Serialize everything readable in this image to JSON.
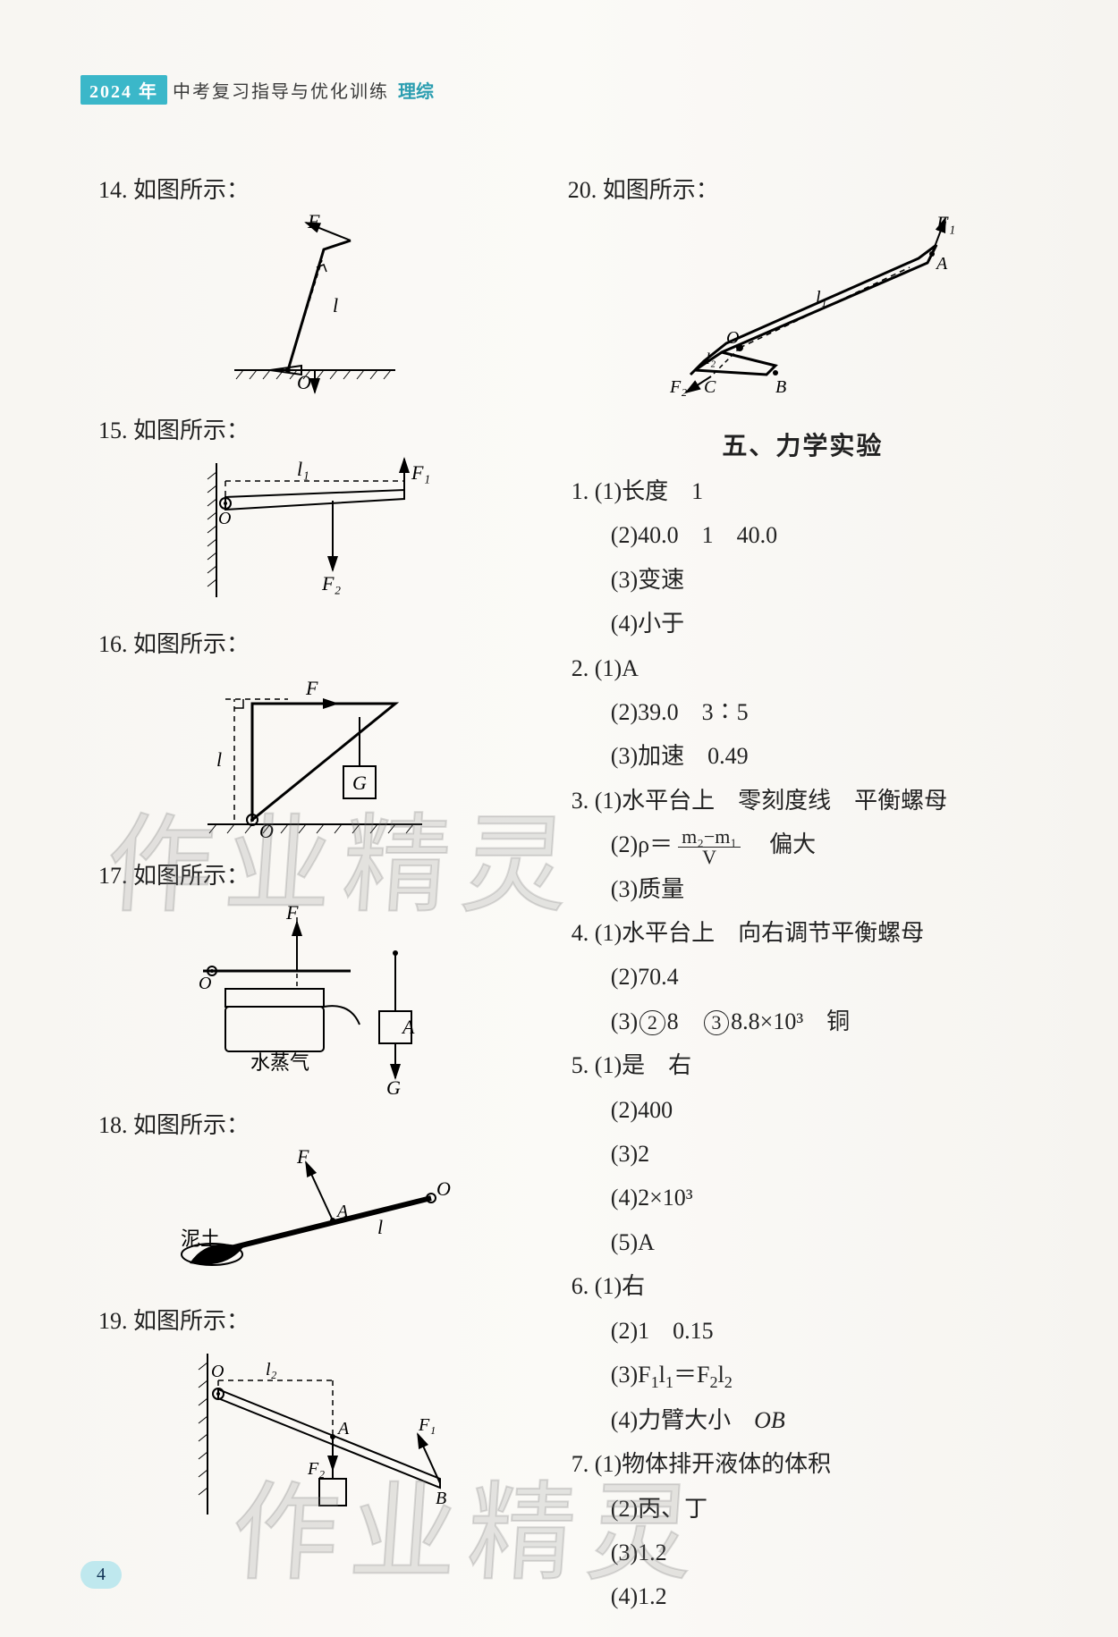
{
  "header": {
    "year": "2024 年",
    "title": "中考复习指导与优化训练",
    "subject": "理综"
  },
  "page_number": "4",
  "watermark": "作业精灵",
  "colors": {
    "text": "#222222",
    "accent": "#3bb7c9",
    "accent_light": "#bfe8ee",
    "paper_bg": "#f8f6f2",
    "watermark_stroke": "rgba(120,120,120,0.25)"
  },
  "left_column": {
    "questions": [
      {
        "num": "14.",
        "text": "如图所示：",
        "svg": "fig14"
      },
      {
        "num": "15.",
        "text": "如图所示：",
        "svg": "fig15"
      },
      {
        "num": "16.",
        "text": "如图所示：",
        "svg": "fig16"
      },
      {
        "num": "17.",
        "text": "如图所示：",
        "svg": "fig17"
      },
      {
        "num": "18.",
        "text": "如图所示：",
        "svg": "fig18"
      },
      {
        "num": "19.",
        "text": "如图所示：",
        "svg": "fig19"
      }
    ],
    "labels": {
      "fig14": {
        "F": "F",
        "l": "l",
        "O": "O"
      },
      "fig15": {
        "l1": "l₁",
        "F1": "F₁",
        "F2": "F₂",
        "O": "O"
      },
      "fig16": {
        "F": "F",
        "l": "l",
        "O": "O",
        "G": "G"
      },
      "fig17": {
        "F": "F",
        "O": "O",
        "A": "A",
        "G": "G",
        "steam": "水蒸气"
      },
      "fig18": {
        "F": "F",
        "A": "A",
        "O": "O",
        "l": "l",
        "mud": "泥土"
      },
      "fig19": {
        "O": "O",
        "l2": "l₂",
        "A": "A",
        "B": "B",
        "F1": "F₁",
        "F2": "F₂"
      }
    }
  },
  "right_column": {
    "q20": {
      "num": "20.",
      "text": "如图所示：",
      "labels": {
        "F1": "F₁",
        "A": "A",
        "l1": "l₁",
        "O": "O",
        "l2": "l₂",
        "F2": "F₂",
        "C": "C",
        "B": "B"
      }
    },
    "section_title": "五、力学实验",
    "answers": [
      {
        "line": "1. (1)长度　1"
      },
      {
        "line": "(2)40.0　1　40.0",
        "indent": true
      },
      {
        "line": "(3)变速",
        "indent": true
      },
      {
        "line": "(4)小于",
        "indent": true
      },
      {
        "line": "2. (1)A"
      },
      {
        "line": "(2)39.0　3∶5",
        "indent": true
      },
      {
        "line": "(3)加速　0.49",
        "indent": true
      },
      {
        "line": "3. (1)水平台上　零刻度线　平衡螺母"
      },
      {
        "html": true,
        "indent": true,
        "prefix": "(2)ρ＝",
        "frac_num": "m₂−m₁",
        "frac_den": "V",
        "suffix": "　偏大"
      },
      {
        "line": "(3)质量",
        "indent": true
      },
      {
        "line": "4. (1)水平台上　向右调节平衡螺母"
      },
      {
        "line": "(2)70.4",
        "indent": true
      },
      {
        "circled": true,
        "indent": true,
        "prefix": "(3)",
        "c1": "2",
        "v1": "8",
        "c2": "3",
        "v2": "8.8×10³",
        "tail": "　铜"
      },
      {
        "line": "5. (1)是　右"
      },
      {
        "line": "(2)400",
        "indent": true
      },
      {
        "line": "(3)2",
        "indent": true
      },
      {
        "line": "(4)2×10³",
        "indent": true
      },
      {
        "line": "(5)A",
        "indent": true
      },
      {
        "line": "6. (1)右"
      },
      {
        "line": "(2)1　0.15",
        "indent": true
      },
      {
        "html_plain": "(3)F₁l₁＝F₂l₂",
        "indent": true
      },
      {
        "html_plain": "(4)力臂大小　OB",
        "indent": true
      },
      {
        "line": "7. (1)物体排开液体的体积"
      },
      {
        "line": "(2)丙、丁",
        "indent": true
      },
      {
        "line": "(3)1.2",
        "indent": true
      },
      {
        "line": "(4)1.2",
        "indent": true
      }
    ]
  }
}
